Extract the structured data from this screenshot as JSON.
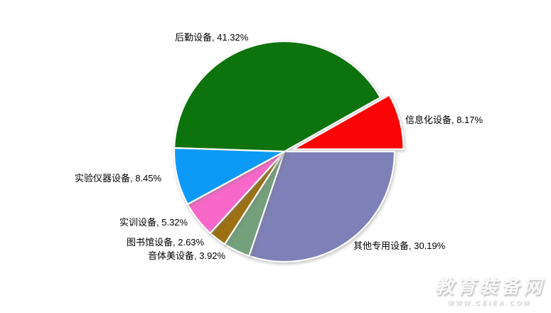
{
  "chart_data": {
    "type": "pie",
    "title": "",
    "legend": "none",
    "label_format": "category, percent",
    "direction": "clockwise",
    "start_angle_deg": -88.15,
    "slices": [
      {
        "label": "后勤设备",
        "value": 41.32,
        "display": "后勤设备, 41.32%",
        "color": "#0d730d",
        "exploded": false
      },
      {
        "label": "信息化设备",
        "value": 8.17,
        "display": "信息化设备, 8.17%",
        "color": "#fa0505",
        "exploded": true
      },
      {
        "label": "其他专用设备",
        "value": 30.19,
        "display": "其他专用设备, 30.19%",
        "color": "#7e80b8",
        "exploded": false
      },
      {
        "label": "音体美设备",
        "value": 3.92,
        "display": "音体美设备, 3.92%",
        "color": "#74a07b",
        "exploded": false
      },
      {
        "label": "图书馆设备",
        "value": 2.63,
        "display": "图书馆设备, 2.63%",
        "color": "#9c7013",
        "exploded": false
      },
      {
        "label": "实训设备",
        "value": 5.32,
        "display": "实训设备, 5.32%",
        "color": "#f768c8",
        "exploded": false
      },
      {
        "label": "实验仪器设备",
        "value": 8.45,
        "display": "实验仪器设备, 8.45%",
        "color": "#0d9af7",
        "exploded": false
      }
    ]
  },
  "watermark": {
    "title": "教育装备网",
    "url": "WWW.CEIEA.COM"
  }
}
